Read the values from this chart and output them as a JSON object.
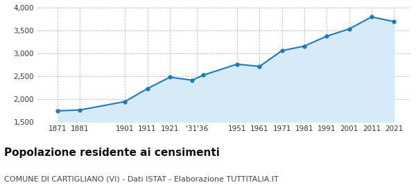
{
  "years": [
    1871,
    1881,
    1901,
    1911,
    1921,
    1931,
    1936,
    1951,
    1961,
    1971,
    1981,
    1991,
    2001,
    2011,
    2021
  ],
  "population": [
    1749,
    1768,
    1951,
    2232,
    2484,
    2418,
    2530,
    2768,
    2718,
    3063,
    3163,
    3380,
    3537,
    3800,
    3697
  ],
  "x_tick_positions": [
    1871,
    1881,
    1901,
    1911,
    1921,
    1933,
    1951,
    1961,
    1971,
    1981,
    1991,
    2001,
    2011,
    2021
  ],
  "x_tick_labels": [
    "1871",
    "1881",
    "1901",
    "1911",
    "1921",
    "'31'36",
    "1951",
    "1961",
    "1971",
    "1981",
    "1991",
    "2001",
    "2011",
    "2021"
  ],
  "ylim": [
    1500,
    4000
  ],
  "yticks": [
    1500,
    2000,
    2500,
    3000,
    3500,
    4000
  ],
  "ytick_labels": [
    "1,500",
    "2,000",
    "2,500",
    "3,000",
    "3,500",
    "4,000"
  ],
  "line_color": "#1a7abf",
  "fill_color": "#d6eaf8",
  "marker_color": "#1a7abf",
  "grid_color": "#bbbbbb",
  "title": "Popolazione residente ai censimenti",
  "subtitle": "COMUNE DI CARTIGLIANO (VI) - Dati ISTAT - Elaborazione TUTTITALIA.IT",
  "title_fontsize": 11,
  "subtitle_fontsize": 8,
  "bg_color": "#ffffff",
  "xlim_left": 1862,
  "xlim_right": 2028
}
